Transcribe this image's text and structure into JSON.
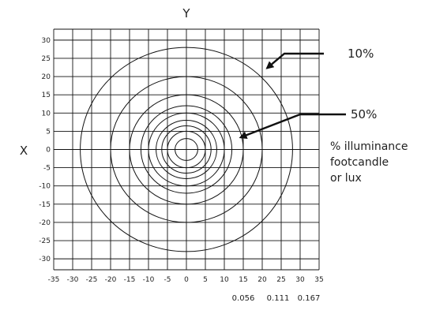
{
  "chart_data": {
    "type": "contour",
    "title": "",
    "xlabel": "Y",
    "ylabel": "X",
    "xlim": [
      -35,
      35
    ],
    "ylim": [
      -33,
      33
    ],
    "x_ticks": [
      -35,
      -30,
      -25,
      -20,
      -15,
      -10,
      -5,
      0,
      5,
      10,
      15,
      20,
      25,
      30,
      35
    ],
    "y_ticks": [
      30,
      25,
      20,
      15,
      10,
      5,
      0,
      -5,
      -10,
      -15,
      -20,
      -25,
      -30
    ],
    "grid": true,
    "contour_radii": [
      28,
      20,
      15,
      12,
      10,
      8,
      6.5,
      5,
      3
    ],
    "annotations": [
      {
        "text": "10%",
        "target": [
          20,
          21
        ]
      },
      {
        "text": "50%",
        "target": [
          13,
          2
        ]
      }
    ],
    "legend_note": [
      "% illuminance",
      "footcandle",
      "or lux"
    ],
    "bottom_values": [
      "0.056",
      "0.111",
      "0.167"
    ]
  }
}
